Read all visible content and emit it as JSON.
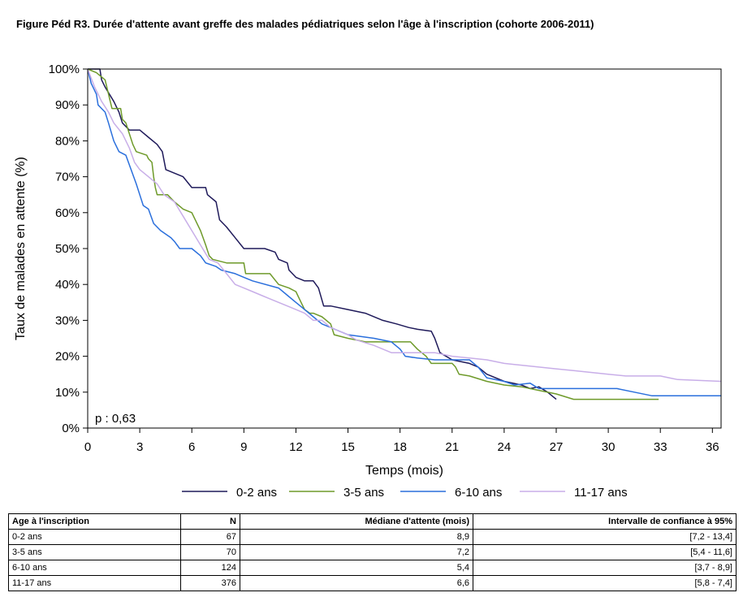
{
  "figure_title": "Figure Péd R3. Durée d'attente avant greffe des malades pédiatriques selon l'âge à l'inscription (cohorte 2006-2011)",
  "colors": {
    "s0": "#1f1a5a",
    "s1": "#6e9a2a",
    "s2": "#2a6fdc",
    "s3": "#c8aee8",
    "axis": "#000000"
  },
  "chart_data": {
    "type": "line",
    "title": "",
    "xlabel": "Temps (mois)",
    "ylabel": "Taux de malades en attente (%)",
    "xlim": [
      0,
      36.5
    ],
    "ylim": [
      0,
      100
    ],
    "xticks": [
      0,
      3,
      6,
      9,
      12,
      15,
      18,
      21,
      24,
      27,
      30,
      33,
      36
    ],
    "yticks": [
      0,
      10,
      20,
      30,
      40,
      50,
      60,
      70,
      80,
      90,
      100
    ],
    "ytick_labels": [
      "0%",
      "10%",
      "20%",
      "30%",
      "40%",
      "50%",
      "60%",
      "70%",
      "80%",
      "90%",
      "100%"
    ],
    "legend_position": "bottom",
    "annotation": "p : 0,63",
    "series": [
      {
        "name": "0-2 ans",
        "points": [
          [
            0,
            100
          ],
          [
            0.7,
            100
          ],
          [
            0.8,
            97
          ],
          [
            1.0,
            95
          ],
          [
            1.5,
            91
          ],
          [
            1.8,
            88
          ],
          [
            2.0,
            85
          ],
          [
            2.4,
            83
          ],
          [
            3.0,
            83
          ],
          [
            3.5,
            81
          ],
          [
            4.0,
            79
          ],
          [
            4.3,
            77
          ],
          [
            4.5,
            72
          ],
          [
            5.0,
            71
          ],
          [
            5.5,
            70
          ],
          [
            6.0,
            67
          ],
          [
            6.8,
            67
          ],
          [
            6.9,
            65
          ],
          [
            7.4,
            63
          ],
          [
            7.6,
            58
          ],
          [
            8.0,
            56
          ],
          [
            8.5,
            53
          ],
          [
            9.0,
            50
          ],
          [
            10.2,
            50
          ],
          [
            10.8,
            49
          ],
          [
            11.0,
            47
          ],
          [
            11.5,
            46
          ],
          [
            11.6,
            44
          ],
          [
            12.0,
            42
          ],
          [
            12.5,
            41
          ],
          [
            13.0,
            41
          ],
          [
            13.3,
            39
          ],
          [
            13.6,
            34
          ],
          [
            14.0,
            34
          ],
          [
            15.0,
            33
          ],
          [
            16.0,
            32
          ],
          [
            17.0,
            30
          ],
          [
            17.8,
            29
          ],
          [
            18.5,
            28
          ],
          [
            19.0,
            27.5
          ],
          [
            19.8,
            27
          ],
          [
            20.0,
            25
          ],
          [
            20.3,
            21
          ],
          [
            21.0,
            19
          ],
          [
            22.0,
            18
          ],
          [
            22.5,
            17
          ],
          [
            23.0,
            15
          ],
          [
            24.0,
            13
          ],
          [
            25.0,
            12
          ],
          [
            25.5,
            11
          ],
          [
            26.0,
            11.5
          ],
          [
            26.5,
            10
          ],
          [
            27.0,
            8
          ]
        ]
      },
      {
        "name": "3-5 ans",
        "points": [
          [
            0,
            100
          ],
          [
            0.5,
            99
          ],
          [
            1.0,
            97
          ],
          [
            1.4,
            89
          ],
          [
            1.9,
            89
          ],
          [
            2.0,
            86
          ],
          [
            2.2,
            85
          ],
          [
            2.4,
            82
          ],
          [
            2.6,
            79
          ],
          [
            2.8,
            77
          ],
          [
            3.4,
            76
          ],
          [
            3.5,
            75
          ],
          [
            3.7,
            74
          ],
          [
            3.8,
            70
          ],
          [
            3.9,
            67
          ],
          [
            4.0,
            65
          ],
          [
            4.6,
            65
          ],
          [
            5.0,
            63
          ],
          [
            5.5,
            61
          ],
          [
            6.0,
            60
          ],
          [
            6.5,
            55
          ],
          [
            6.8,
            51
          ],
          [
            7.0,
            48
          ],
          [
            7.2,
            47
          ],
          [
            8.0,
            46
          ],
          [
            9.0,
            46
          ],
          [
            9.1,
            43
          ],
          [
            10.5,
            43
          ],
          [
            11.0,
            40
          ],
          [
            11.6,
            39
          ],
          [
            12.0,
            38
          ],
          [
            12.3,
            35
          ],
          [
            12.5,
            33
          ],
          [
            12.8,
            32
          ],
          [
            13.0,
            32
          ],
          [
            13.5,
            31
          ],
          [
            14.0,
            29
          ],
          [
            14.2,
            26
          ],
          [
            15.0,
            25
          ],
          [
            16.0,
            24
          ],
          [
            18.0,
            24
          ],
          [
            18.6,
            24
          ],
          [
            19.0,
            22
          ],
          [
            19.5,
            20
          ],
          [
            19.8,
            18
          ],
          [
            21.0,
            18
          ],
          [
            21.2,
            17
          ],
          [
            21.4,
            15
          ],
          [
            22.0,
            14.5
          ],
          [
            23.0,
            13
          ],
          [
            24.0,
            12
          ],
          [
            25.0,
            11.5
          ],
          [
            26.0,
            10.5
          ],
          [
            27.0,
            9.5
          ],
          [
            28.0,
            8
          ],
          [
            32.9,
            8
          ]
        ]
      },
      {
        "name": "6-10 ans",
        "points": [
          [
            0,
            100
          ],
          [
            0.2,
            96
          ],
          [
            0.5,
            93
          ],
          [
            0.6,
            90
          ],
          [
            0.8,
            89
          ],
          [
            1.0,
            88
          ],
          [
            1.2,
            85
          ],
          [
            1.5,
            80
          ],
          [
            1.8,
            77
          ],
          [
            2.2,
            76
          ],
          [
            2.5,
            72
          ],
          [
            2.8,
            68
          ],
          [
            3.0,
            65
          ],
          [
            3.2,
            62
          ],
          [
            3.5,
            61
          ],
          [
            3.8,
            57
          ],
          [
            4.2,
            55
          ],
          [
            4.8,
            53
          ],
          [
            5.0,
            52
          ],
          [
            5.3,
            50
          ],
          [
            6.0,
            50
          ],
          [
            6.5,
            48
          ],
          [
            6.8,
            46
          ],
          [
            7.4,
            45
          ],
          [
            7.7,
            44
          ],
          [
            8.5,
            43
          ],
          [
            9.0,
            42
          ],
          [
            9.5,
            41
          ],
          [
            11.0,
            39
          ],
          [
            11.5,
            37
          ],
          [
            12.0,
            35
          ],
          [
            12.5,
            33
          ],
          [
            13.0,
            31
          ],
          [
            13.5,
            29
          ],
          [
            14.0,
            28
          ],
          [
            14.5,
            27
          ],
          [
            15.0,
            26
          ],
          [
            16.5,
            25
          ],
          [
            17.5,
            24
          ],
          [
            18.0,
            22
          ],
          [
            18.3,
            20
          ],
          [
            19.0,
            19.5
          ],
          [
            20.0,
            19
          ],
          [
            22.0,
            19
          ],
          [
            22.5,
            17
          ],
          [
            23.0,
            14
          ],
          [
            24.0,
            13
          ],
          [
            24.6,
            12
          ],
          [
            25.5,
            12.5
          ],
          [
            26.0,
            11
          ],
          [
            28.0,
            11
          ],
          [
            29.0,
            11
          ],
          [
            30.0,
            11
          ],
          [
            30.5,
            11
          ],
          [
            31.5,
            10
          ],
          [
            32.5,
            9
          ],
          [
            36.5,
            9
          ]
        ]
      },
      {
        "name": "11-17 ans",
        "points": [
          [
            0,
            100
          ],
          [
            0.4,
            95
          ],
          [
            0.8,
            91
          ],
          [
            1.2,
            88
          ],
          [
            1.5,
            85
          ],
          [
            2.0,
            82
          ],
          [
            2.4,
            78
          ],
          [
            2.7,
            74
          ],
          [
            3.0,
            72
          ],
          [
            3.5,
            70
          ],
          [
            4.0,
            68
          ],
          [
            4.4,
            65
          ],
          [
            5.0,
            63
          ],
          [
            5.5,
            59
          ],
          [
            6.0,
            55
          ],
          [
            6.5,
            51
          ],
          [
            7.0,
            47
          ],
          [
            7.5,
            46
          ],
          [
            8.0,
            43
          ],
          [
            8.5,
            40
          ],
          [
            9.0,
            39
          ],
          [
            9.5,
            38
          ],
          [
            10.0,
            37
          ],
          [
            10.5,
            36
          ],
          [
            11.0,
            35
          ],
          [
            11.5,
            34
          ],
          [
            12.0,
            33
          ],
          [
            12.5,
            32
          ],
          [
            13.0,
            30
          ],
          [
            13.5,
            30
          ],
          [
            14.0,
            28
          ],
          [
            15.0,
            26
          ],
          [
            15.5,
            24.5
          ],
          [
            16.5,
            23
          ],
          [
            17.5,
            21
          ],
          [
            19.0,
            21
          ],
          [
            20.0,
            21
          ],
          [
            21.0,
            20
          ],
          [
            22.0,
            19.5
          ],
          [
            23.0,
            19
          ],
          [
            24.0,
            18
          ],
          [
            25.0,
            17.5
          ],
          [
            26.0,
            17
          ],
          [
            27.0,
            16.5
          ],
          [
            28.0,
            16
          ],
          [
            29.0,
            15.5
          ],
          [
            30.0,
            15
          ],
          [
            31.0,
            14.5
          ],
          [
            32.0,
            14.5
          ],
          [
            33.0,
            14.5
          ],
          [
            33.5,
            14
          ],
          [
            34.0,
            13.5
          ],
          [
            36.5,
            13
          ]
        ]
      }
    ]
  },
  "table": {
    "headers": [
      "Age à l'inscription",
      "N",
      "Médiane d'attente (mois)",
      "Intervalle de confiance à 95%"
    ],
    "rows": [
      [
        "0-2 ans",
        "67",
        "8,9",
        "[7,2 - 13,4]"
      ],
      [
        "3-5 ans",
        "70",
        "7,2",
        "[5,4 - 11,6]"
      ],
      [
        "6-10 ans",
        "124",
        "5,4",
        "[3,7 - 8,9]"
      ],
      [
        "11-17 ans",
        "376",
        "6,6",
        "[5,8 - 7,4]"
      ]
    ]
  }
}
